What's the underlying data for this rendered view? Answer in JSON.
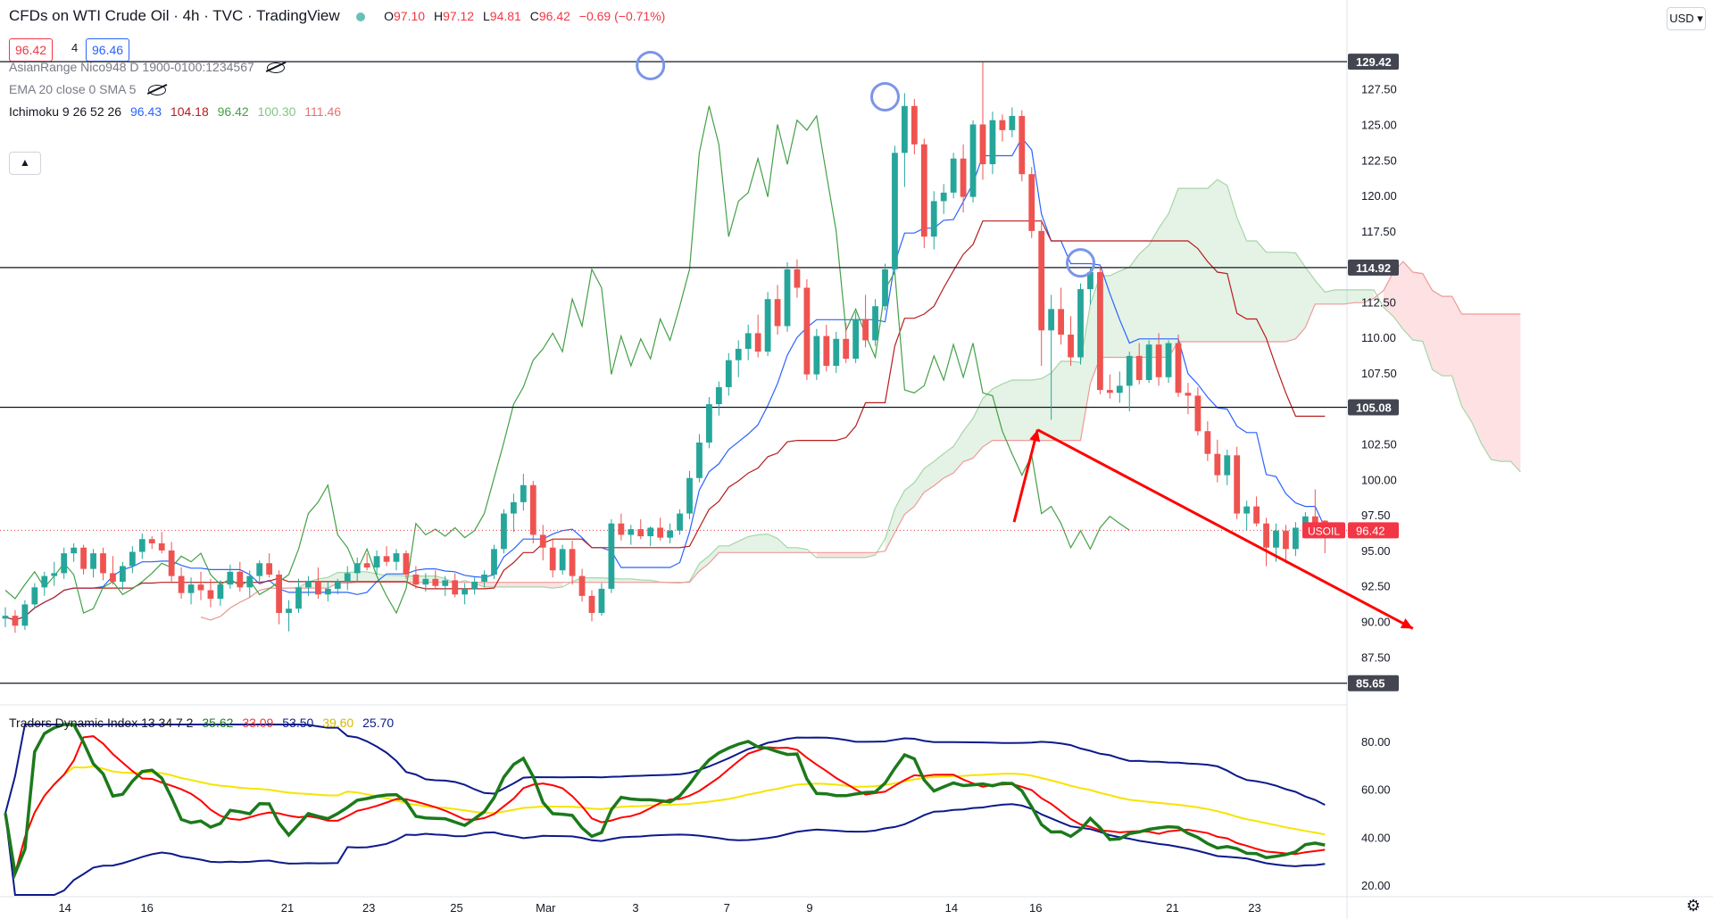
{
  "header": {
    "title": "CFDs on WTI Crude Oil · 4h · TVC · TradingView",
    "ohlc": [
      {
        "k": "O",
        "v": "97.10"
      },
      {
        "k": "H",
        "v": "97.12"
      },
      {
        "k": "L",
        "v": "94.81"
      },
      {
        "k": "C",
        "v": "96.42"
      },
      {
        "k": "",
        "v": "−0.69 (−0.71%)"
      }
    ],
    "bid": "96.42",
    "step": "4",
    "ask": "96.46",
    "currency_button": "USD ▾"
  },
  "indicators": {
    "asian_range": "AsianRange Nico948 D 1900-0100:1234567",
    "ema": "EMA 20 close 0 SMA 5",
    "ichimoku": {
      "name": "Ichimoku 9 26 52 26",
      "values": [
        {
          "v": "96.43",
          "color": "#2962ff"
        },
        {
          "v": "104.18",
          "color": "#b71c1c"
        },
        {
          "v": "96.42",
          "color": "#43a047"
        },
        {
          "v": "100.30",
          "color": "#a5d6a7"
        },
        {
          "v": "111.46",
          "color": "#ef9a9a"
        }
      ]
    },
    "tdi": {
      "name": "Traders Dynamic Index 13 34 7 2",
      "values": [
        {
          "v": "35.62",
          "color": "#1b7a1b"
        },
        {
          "v": "33.09",
          "color": "#f44336"
        },
        {
          "v": "53.50",
          "color": "#0d1a8a"
        },
        {
          "v": "39.60",
          "color": "#f2d600"
        },
        {
          "v": "25.70",
          "color": "#0d1a8a"
        }
      ]
    }
  },
  "chart_data": {
    "type": "candlestick",
    "symbol_label": "USOIL",
    "last_price": "96.42",
    "x_tick_labels": [
      "14",
      "16",
      "21",
      "23",
      "25",
      "Mar",
      "3",
      "7",
      "9",
      "14",
      "16",
      "21",
      "23"
    ],
    "y_ticks": [
      "127.50",
      "125.00",
      "122.50",
      "120.00",
      "117.50",
      "112.50",
      "110.00",
      "107.50",
      "102.50",
      "100.00",
      "97.50",
      "95.00",
      "92.50",
      "90.00",
      "87.50"
    ],
    "y_range": [
      84,
      131
    ],
    "horizontal_levels": [
      {
        "value": 129.42,
        "label": "129.42"
      },
      {
        "value": 114.92,
        "label": "114.92"
      },
      {
        "value": 105.08,
        "label": "105.08"
      },
      {
        "value": 85.65,
        "label": "85.65"
      }
    ],
    "projection": [
      [
        103.2,
        97.0
      ],
      [
        105.6,
        103.5
      ],
      [
        144.0,
        89.5
      ]
    ],
    "tdi_y_ticks": [
      "80.00",
      "60.00",
      "40.00",
      "20.00"
    ],
    "tdi_range": [
      16,
      87
    ],
    "candles": [
      [
        90.2,
        91.0,
        89.6,
        90.4
      ],
      [
        90.4,
        90.8,
        89.2,
        89.7
      ],
      [
        89.7,
        91.5,
        89.4,
        91.2
      ],
      [
        91.2,
        92.7,
        90.9,
        92.4
      ],
      [
        92.4,
        93.5,
        91.8,
        93.2
      ],
      [
        93.2,
        94.2,
        92.5,
        93.4
      ],
      [
        93.4,
        95.2,
        93.0,
        94.8
      ],
      [
        94.8,
        95.5,
        94.2,
        95.2
      ],
      [
        95.2,
        95.4,
        93.3,
        93.7
      ],
      [
        93.7,
        95.1,
        93.1,
        94.8
      ],
      [
        94.8,
        95.2,
        92.9,
        93.4
      ],
      [
        93.4,
        94.6,
        92.6,
        92.8
      ],
      [
        92.8,
        94.2,
        92.2,
        93.9
      ],
      [
        93.9,
        95.3,
        93.4,
        94.9
      ],
      [
        94.9,
        96.2,
        94.4,
        95.8
      ],
      [
        95.8,
        96.0,
        95.1,
        95.5
      ],
      [
        95.5,
        96.3,
        94.8,
        95.0
      ],
      [
        95.0,
        95.6,
        92.7,
        93.2
      ],
      [
        93.2,
        93.8,
        91.6,
        92.0
      ],
      [
        92.0,
        93.1,
        91.2,
        92.6
      ],
      [
        92.6,
        93.5,
        91.5,
        92.2
      ],
      [
        92.2,
        93.0,
        91.0,
        91.6
      ],
      [
        91.6,
        92.9,
        91.1,
        92.6
      ],
      [
        92.6,
        94.0,
        92.3,
        93.5
      ],
      [
        93.5,
        94.2,
        92.1,
        92.4
      ],
      [
        92.4,
        93.6,
        91.7,
        93.2
      ],
      [
        93.2,
        94.3,
        92.7,
        94.1
      ],
      [
        94.1,
        94.8,
        93.1,
        93.3
      ],
      [
        93.3,
        93.6,
        89.8,
        90.6
      ],
      [
        90.6,
        91.5,
        89.3,
        90.9
      ],
      [
        90.9,
        93.0,
        90.6,
        92.4
      ],
      [
        92.4,
        93.2,
        91.8,
        92.8
      ],
      [
        92.8,
        93.8,
        91.6,
        91.9
      ],
      [
        91.9,
        92.8,
        91.4,
        92.3
      ],
      [
        92.3,
        93.0,
        91.9,
        92.8
      ],
      [
        92.8,
        93.9,
        92.2,
        93.4
      ],
      [
        93.4,
        94.5,
        92.8,
        94.1
      ],
      [
        94.1,
        94.8,
        93.6,
        93.8
      ],
      [
        93.8,
        95.0,
        93.3,
        94.6
      ],
      [
        94.6,
        95.3,
        93.9,
        94.2
      ],
      [
        94.2,
        95.1,
        93.6,
        94.8
      ],
      [
        94.8,
        95.0,
        93.0,
        93.3
      ],
      [
        93.3,
        93.9,
        92.3,
        92.6
      ],
      [
        92.6,
        93.4,
        92.1,
        93.0
      ],
      [
        93.0,
        93.6,
        92.3,
        92.5
      ],
      [
        92.5,
        93.2,
        91.8,
        92.9
      ],
      [
        92.9,
        93.4,
        91.7,
        91.9
      ],
      [
        91.9,
        92.7,
        91.2,
        92.3
      ],
      [
        92.3,
        93.1,
        91.9,
        92.8
      ],
      [
        92.8,
        93.6,
        92.4,
        93.3
      ],
      [
        93.3,
        95.4,
        93.0,
        95.1
      ],
      [
        95.1,
        97.9,
        94.8,
        97.6
      ],
      [
        97.6,
        99.0,
        96.3,
        98.4
      ],
      [
        98.4,
        100.4,
        97.8,
        99.6
      ],
      [
        99.6,
        99.9,
        95.5,
        96.1
      ],
      [
        96.1,
        96.8,
        94.3,
        95.2
      ],
      [
        95.2,
        95.8,
        93.1,
        93.6
      ],
      [
        93.6,
        95.4,
        93.3,
        95.1
      ],
      [
        95.1,
        95.7,
        92.6,
        93.2
      ],
      [
        93.2,
        93.7,
        91.4,
        91.8
      ],
      [
        91.8,
        92.2,
        90.0,
        90.6
      ],
      [
        90.6,
        92.7,
        90.4,
        92.3
      ],
      [
        92.3,
        97.2,
        92.0,
        96.9
      ],
      [
        96.9,
        97.6,
        95.7,
        96.1
      ],
      [
        96.1,
        96.8,
        95.4,
        96.5
      ],
      [
        96.5,
        97.2,
        95.8,
        96.0
      ],
      [
        96.0,
        96.7,
        95.3,
        96.6
      ],
      [
        96.6,
        97.3,
        95.7,
        95.9
      ],
      [
        95.9,
        96.9,
        95.5,
        96.4
      ],
      [
        96.4,
        97.9,
        96.1,
        97.6
      ],
      [
        97.6,
        100.6,
        97.2,
        100.1
      ],
      [
        100.1,
        103.2,
        99.8,
        102.6
      ],
      [
        102.6,
        105.8,
        102.2,
        105.3
      ],
      [
        105.3,
        106.9,
        104.5,
        106.5
      ],
      [
        106.5,
        108.9,
        105.9,
        108.4
      ],
      [
        108.4,
        109.8,
        107.2,
        109.2
      ],
      [
        109.2,
        110.9,
        108.4,
        110.3
      ],
      [
        110.3,
        111.6,
        108.6,
        109.0
      ],
      [
        109.0,
        113.2,
        108.7,
        112.7
      ],
      [
        112.7,
        113.7,
        110.2,
        110.8
      ],
      [
        110.8,
        115.3,
        110.4,
        114.8
      ],
      [
        114.8,
        115.5,
        112.8,
        113.5
      ],
      [
        113.5,
        114.1,
        107.0,
        107.4
      ],
      [
        107.4,
        110.6,
        107.0,
        110.1
      ],
      [
        110.1,
        110.9,
        107.6,
        108.0
      ],
      [
        108.0,
        110.4,
        107.5,
        109.9
      ],
      [
        109.9,
        111.0,
        108.2,
        108.5
      ],
      [
        108.5,
        111.8,
        108.2,
        111.3
      ],
      [
        111.3,
        113.0,
        109.3,
        109.8
      ],
      [
        109.8,
        112.7,
        109.4,
        112.2
      ],
      [
        112.2,
        115.2,
        111.9,
        114.8
      ],
      [
        114.8,
        123.5,
        114.5,
        123.0
      ],
      [
        123.0,
        127.2,
        120.6,
        126.3
      ],
      [
        126.3,
        126.8,
        122.9,
        123.6
      ],
      [
        123.6,
        124.0,
        116.3,
        117.1
      ],
      [
        117.1,
        120.3,
        116.2,
        119.6
      ],
      [
        119.6,
        120.8,
        118.7,
        120.2
      ],
      [
        120.2,
        123.0,
        119.8,
        122.6
      ],
      [
        122.6,
        123.6,
        118.8,
        119.9
      ],
      [
        119.9,
        125.3,
        119.5,
        125.0
      ],
      [
        125.0,
        129.4,
        121.1,
        122.2
      ],
      [
        122.2,
        125.9,
        121.5,
        125.3
      ],
      [
        125.3,
        125.7,
        123.8,
        124.6
      ],
      [
        124.6,
        126.2,
        124.1,
        125.6
      ],
      [
        125.6,
        126.0,
        121.0,
        121.5
      ],
      [
        121.5,
        122.0,
        117.0,
        117.5
      ],
      [
        117.5,
        118.3,
        108.0,
        110.5
      ],
      [
        110.5,
        113.0,
        104.2,
        112.0
      ],
      [
        112.0,
        113.5,
        109.5,
        110.2
      ],
      [
        110.2,
        111.5,
        108.0,
        108.6
      ],
      [
        108.6,
        113.8,
        108.1,
        113.4
      ],
      [
        113.4,
        114.9,
        112.3,
        114.6
      ],
      [
        114.6,
        115.0,
        106.0,
        106.3
      ],
      [
        106.3,
        107.4,
        105.7,
        106.1
      ],
      [
        106.1,
        107.6,
        105.4,
        106.6
      ],
      [
        106.6,
        109.0,
        104.8,
        108.7
      ],
      [
        108.7,
        109.6,
        106.7,
        107.0
      ],
      [
        107.0,
        109.8,
        106.8,
        109.5
      ],
      [
        109.5,
        110.3,
        106.6,
        107.2
      ],
      [
        107.2,
        109.8,
        106.8,
        109.6
      ],
      [
        109.6,
        110.2,
        105.8,
        106.1
      ],
      [
        106.1,
        106.8,
        104.6,
        105.9
      ],
      [
        105.9,
        106.5,
        103.1,
        103.4
      ],
      [
        103.4,
        104.1,
        101.3,
        101.8
      ],
      [
        101.8,
        102.8,
        99.8,
        100.3
      ],
      [
        100.3,
        102.1,
        99.6,
        101.7
      ],
      [
        101.7,
        102.3,
        97.2,
        97.6
      ],
      [
        97.6,
        98.5,
        96.4,
        98.1
      ],
      [
        98.1,
        98.8,
        96.7,
        96.9
      ],
      [
        96.9,
        97.3,
        93.9,
        95.2
      ],
      [
        95.2,
        96.9,
        94.2,
        96.4
      ],
      [
        96.4,
        96.8,
        94.1,
        95.1
      ],
      [
        95.1,
        97.0,
        94.6,
        96.6
      ],
      [
        96.6,
        97.7,
        96.0,
        97.4
      ],
      [
        97.4,
        99.3,
        96.5,
        96.9
      ],
      [
        97.1,
        97.12,
        94.81,
        96.42
      ]
    ]
  }
}
